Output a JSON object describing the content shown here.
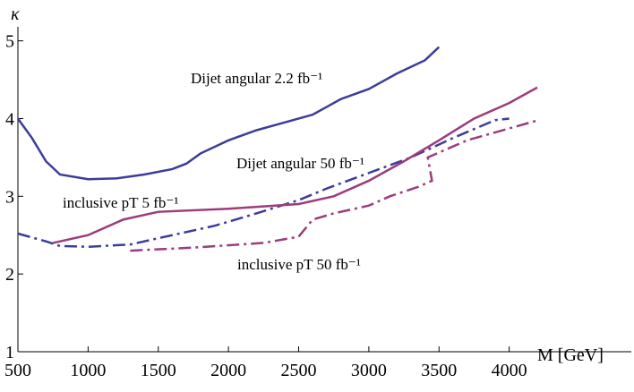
{
  "chart_data": {
    "type": "line",
    "x_label": "M [GeV]",
    "y_label": "κ",
    "xlim": [
      500,
      4870
    ],
    "ylim": [
      1,
      5.18
    ],
    "xticks": [
      500,
      1000,
      1500,
      2000,
      2500,
      3000,
      3500,
      4000
    ],
    "yticks": [
      1,
      2,
      3,
      4,
      5
    ],
    "grid": false,
    "annotations": [
      "Dijet angular 2.2 fb⁻¹",
      "Dijet angular 50 fb⁻¹",
      "inclusive pT 5 fb⁻¹",
      "inclusive pT 50 fb⁻¹"
    ],
    "series": [
      {
        "color": "#3c3c9c",
        "dash": "solid",
        "x": [
          500,
          600,
          700,
          800,
          1000,
          1200,
          1400,
          1600,
          1700,
          1800,
          2000,
          2200,
          2400,
          2600,
          2700,
          2800,
          3000,
          3100,
          3200,
          3400,
          3500
        ],
        "values": [
          4.0,
          3.75,
          3.45,
          3.28,
          3.22,
          3.23,
          3.28,
          3.35,
          3.42,
          3.55,
          3.72,
          3.85,
          3.95,
          4.05,
          4.15,
          4.25,
          4.38,
          4.48,
          4.58,
          4.75,
          4.92
        ]
      },
      {
        "color": "#3c3c9c",
        "dash": "dashdot",
        "x": [
          500,
          700,
          800,
          1000,
          1300,
          1600,
          1900,
          2200,
          2500,
          2700,
          3000,
          3300,
          3600,
          3900,
          4000
        ],
        "values": [
          2.52,
          2.42,
          2.36,
          2.35,
          2.38,
          2.5,
          2.62,
          2.78,
          2.95,
          3.1,
          3.3,
          3.5,
          3.75,
          3.98,
          4.0
        ]
      },
      {
        "color": "#9c3c7c",
        "dash": "solid",
        "x": [
          750,
          1000,
          1250,
          1500,
          2000,
          2500,
          2750,
          3000,
          3250,
          3500,
          3750,
          4000,
          4200
        ],
        "values": [
          2.4,
          2.5,
          2.7,
          2.8,
          2.84,
          2.9,
          3.0,
          3.2,
          3.45,
          3.72,
          4.0,
          4.2,
          4.4
        ]
      },
      {
        "color": "#9c3c7c",
        "dash": "dashdot",
        "x": [
          1300,
          1750,
          2250,
          2500,
          2600,
          2750,
          3000,
          3150,
          3350,
          3450,
          3420,
          3700,
          4190
        ],
        "values": [
          2.3,
          2.34,
          2.4,
          2.48,
          2.7,
          2.78,
          2.88,
          3.0,
          3.12,
          3.2,
          3.5,
          3.72,
          3.97
        ]
      }
    ]
  }
}
